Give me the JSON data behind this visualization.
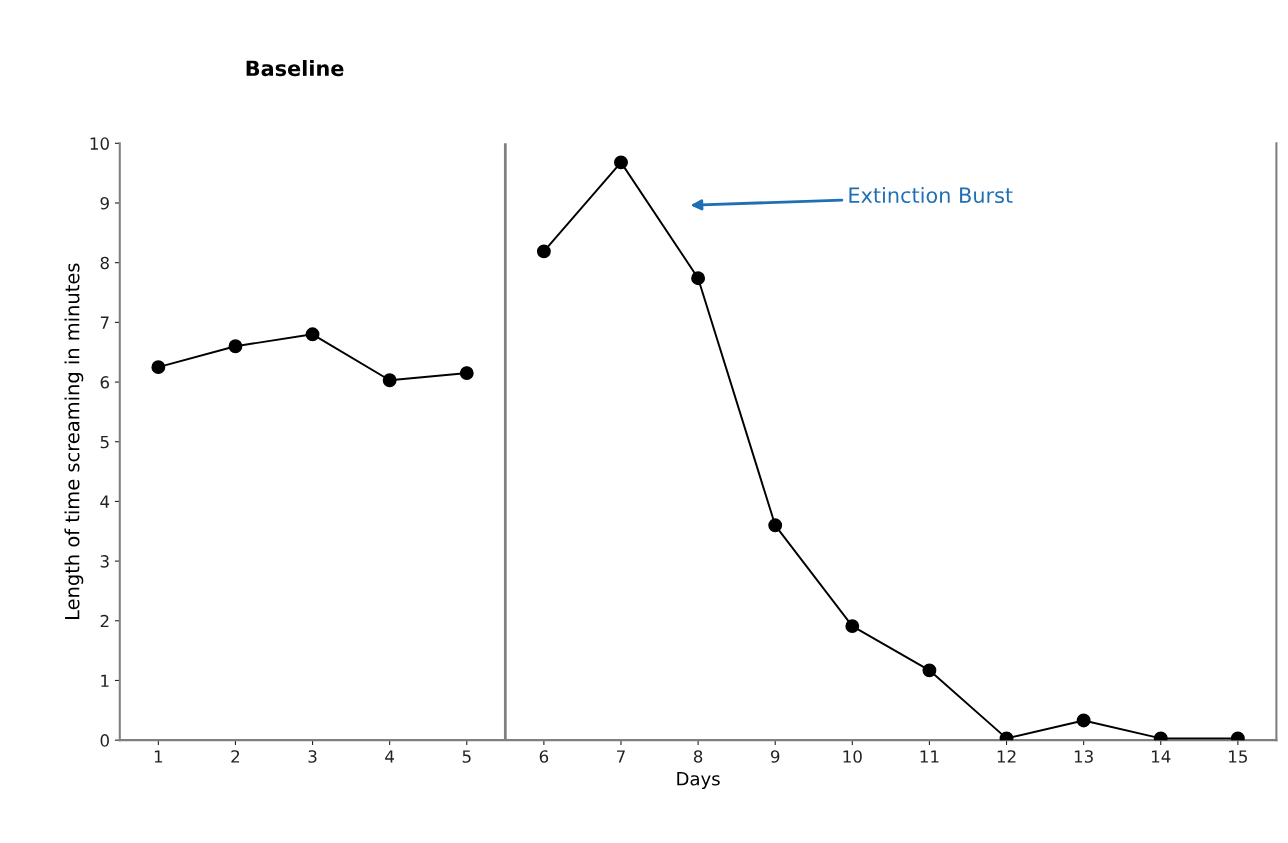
{
  "chart_data": {
    "type": "line",
    "xlabel": "Days",
    "ylabel": "Length of time screaming in minutes",
    "xlim": [
      0.5,
      15.5
    ],
    "xticks": [
      1,
      2,
      3,
      4,
      5,
      6,
      7,
      8,
      9,
      10,
      11,
      12,
      13,
      14,
      15
    ],
    "ylim": [
      0,
      10
    ],
    "yticks": [
      0,
      1,
      2,
      3,
      4,
      5,
      6,
      7,
      8,
      9,
      10
    ],
    "series": [
      {
        "color": "#000000",
        "x": [
          1,
          2,
          3,
          4,
          5
        ],
        "values": [
          6.25,
          6.6,
          6.8,
          6.03,
          6.15
        ]
      },
      {
        "color": "#000000",
        "x": [
          6,
          7,
          8,
          9,
          10,
          11,
          12,
          13,
          14,
          15
        ],
        "values": [
          8.19,
          9.68,
          7.74,
          3.6,
          1.91,
          1.17,
          0.03,
          0.33,
          0.03,
          0.03
        ]
      }
    ],
    "marker": "circle",
    "line_style": "solid",
    "grid": false,
    "ref_lines": [
      {
        "axis": "x",
        "value": 5.5,
        "color": "#808080"
      }
    ],
    "annotations": [
      "Baseline",
      "Extinction Burst"
    ]
  }
}
